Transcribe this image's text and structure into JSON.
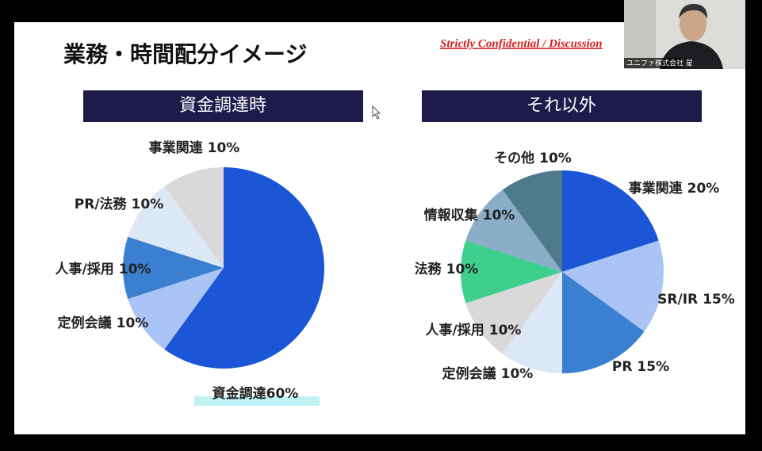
{
  "slide": {
    "title": "業務・時間配分イメージ",
    "confidential": "Strictly Confidential / Discussion"
  },
  "webcam": {
    "label": "ユニファ株式会社 星"
  },
  "chart_data": [
    {
      "type": "pie",
      "title": "資金調達時",
      "categories": [
        "資金調達",
        "定例会議",
        "人事/採用",
        "PR/法務",
        "事業関連"
      ],
      "values": [
        60,
        10,
        10,
        10,
        10
      ],
      "value_labels": [
        "60%",
        "10%",
        "10%",
        "10%",
        "10%"
      ],
      "colors": [
        "#1a56d6",
        "#a9c4f5",
        "#3a7fd0",
        "#dde8f7",
        "#d9d9d9"
      ]
    },
    {
      "type": "pie",
      "title": "それ以外",
      "categories": [
        "事業関連",
        "SR/IR",
        "PR",
        "定例会議",
        "人事/採用",
        "法務",
        "情報収集",
        "その他"
      ],
      "values": [
        20,
        15,
        15,
        10,
        10,
        10,
        10,
        10
      ],
      "value_labels": [
        "20%",
        "15%",
        "15%",
        "10%",
        "10%",
        "10%",
        "10%",
        "10%"
      ],
      "colors": [
        "#1a56d6",
        "#a9c4f5",
        "#3a7fd0",
        "#dde8f7",
        "#d9d9d9",
        "#3ecf8e",
        "#8aaec8",
        "#4e7a8c"
      ]
    }
  ]
}
